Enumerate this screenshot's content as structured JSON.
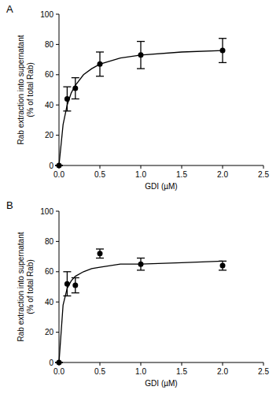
{
  "chart_data": [
    {
      "type": "scatter",
      "title": "A",
      "xlabel": "GDI (µM)",
      "ylabel": [
        "Rab extraction into supernatant",
        "(% of total Rab)"
      ],
      "xlim": [
        0,
        2.5
      ],
      "ylim": [
        0,
        100
      ],
      "xticks": [
        {
          "value": 0,
          "label": "0.0"
        },
        0.5,
        {
          "value": 1,
          "label": "1.0"
        },
        1.5,
        {
          "value": 2,
          "label": "2.0"
        },
        2.5
      ],
      "yticks": [
        0,
        20,
        40,
        60,
        80,
        100
      ],
      "grid": false,
      "series": [
        {
          "type": "scatter",
          "color": "#000000",
          "marker": "circle",
          "x": [
            0,
            0.1,
            0.2,
            0.5,
            1,
            2
          ],
          "values": [
            0,
            44,
            51,
            67,
            73,
            76
          ],
          "errors": [
            0,
            8,
            7,
            8,
            9,
            8
          ]
        },
        {
          "type": "line",
          "color": "#000000",
          "line_style": "solid",
          "x": [
            0,
            0.05,
            0.1,
            0.15,
            0.2,
            0.3,
            0.4,
            0.5,
            0.75,
            1,
            1.5,
            2
          ],
          "values": [
            0,
            27,
            40,
            48,
            53,
            60,
            64,
            67,
            71,
            73,
            75,
            76
          ]
        }
      ]
    },
    {
      "type": "scatter",
      "title": "B",
      "xlabel": "GDI (µM)",
      "ylabel": [
        "Rab extraction into supernatant",
        "(% of total Rab)"
      ],
      "xlim": [
        0,
        2.5
      ],
      "ylim": [
        0,
        100
      ],
      "xticks": [
        {
          "value": 0,
          "label": "0.0"
        },
        0.5,
        {
          "value": 1,
          "label": "1.0"
        },
        1.5,
        {
          "value": 2,
          "label": "2.0"
        },
        2.5
      ],
      "yticks": [
        0,
        20,
        40,
        60,
        80,
        100
      ],
      "grid": false,
      "series": [
        {
          "type": "scatter",
          "color": "#000000",
          "marker": "circle",
          "x": [
            0,
            0.1,
            0.2,
            0.5,
            1,
            2
          ],
          "values": [
            0,
            52,
            51,
            72,
            65,
            64
          ],
          "errors": [
            0,
            8,
            5,
            3,
            4,
            3
          ]
        },
        {
          "type": "line",
          "color": "#000000",
          "line_style": "solid",
          "x": [
            0,
            0.05,
            0.1,
            0.15,
            0.2,
            0.3,
            0.4,
            0.5,
            0.75,
            1,
            1.5,
            2
          ],
          "values": [
            0,
            38,
            49,
            54,
            57,
            60,
            62,
            63,
            65,
            65,
            66,
            67
          ]
        }
      ]
    }
  ]
}
